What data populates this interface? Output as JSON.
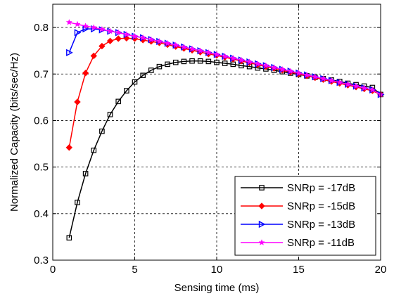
{
  "chart_data": {
    "type": "line",
    "xlabel": "Sensing time (ms)",
    "ylabel": "Normalized Capacity (bits/sec/Hz)",
    "xlim": [
      0,
      20
    ],
    "ylim": [
      0.3,
      0.85
    ],
    "xticks": [
      0,
      5,
      10,
      15,
      20
    ],
    "yticks": [
      0.3,
      0.4,
      0.5,
      0.6,
      0.7,
      0.8
    ],
    "ytick_labels": [
      "0.3",
      "0.4",
      "0.5",
      "0.6",
      "0.7",
      "0.8"
    ],
    "grid": true,
    "legend_position": "bottom-right",
    "x": [
      1,
      1.5,
      2,
      2.5,
      3,
      3.5,
      4,
      4.5,
      5,
      5.5,
      6,
      6.5,
      7,
      7.5,
      8,
      8.5,
      9,
      9.5,
      10,
      10.5,
      11,
      11.5,
      12,
      12.5,
      13,
      13.5,
      14,
      14.5,
      15,
      15.5,
      16,
      16.5,
      17,
      17.5,
      18,
      18.5,
      19,
      19.5,
      20
    ],
    "series": [
      {
        "name": "SNRp = -17dB",
        "color": "#000000",
        "marker": "square",
        "values": [
          0.348,
          0.424,
          0.486,
          0.536,
          0.577,
          0.613,
          0.641,
          0.664,
          0.683,
          0.697,
          0.708,
          0.716,
          0.721,
          0.725,
          0.727,
          0.728,
          0.728,
          0.727,
          0.725,
          0.723,
          0.721,
          0.718,
          0.716,
          0.713,
          0.711,
          0.708,
          0.705,
          0.702,
          0.699,
          0.696,
          0.693,
          0.69,
          0.687,
          0.684,
          0.68,
          0.677,
          0.674,
          0.671,
          0.656
        ]
      },
      {
        "name": "SNRp = -15dB",
        "color": "#ff0000",
        "marker": "diamond",
        "values": [
          0.542,
          0.64,
          0.702,
          0.739,
          0.76,
          0.771,
          0.776,
          0.777,
          0.776,
          0.773,
          0.77,
          0.767,
          0.763,
          0.759,
          0.755,
          0.751,
          0.747,
          0.743,
          0.74,
          0.736,
          0.732,
          0.728,
          0.724,
          0.72,
          0.716,
          0.712,
          0.708,
          0.704,
          0.7,
          0.696,
          0.692,
          0.688,
          0.684,
          0.68,
          0.676,
          0.672,
          0.668,
          0.664,
          0.656
        ]
      },
      {
        "name": "SNRp = -13dB",
        "color": "#0000ff",
        "marker": "triangle-right",
        "values": [
          0.746,
          0.789,
          0.797,
          0.797,
          0.795,
          0.792,
          0.789,
          0.785,
          0.781,
          0.778,
          0.774,
          0.77,
          0.766,
          0.762,
          0.758,
          0.754,
          0.75,
          0.746,
          0.742,
          0.738,
          0.734,
          0.73,
          0.726,
          0.722,
          0.718,
          0.714,
          0.71,
          0.706,
          0.702,
          0.698,
          0.694,
          0.69,
          0.686,
          0.682,
          0.678,
          0.674,
          0.67,
          0.666,
          0.656
        ]
      },
      {
        "name": "SNRp = -11dB",
        "color": "#ff00ff",
        "marker": "star",
        "values": [
          0.811,
          0.807,
          0.803,
          0.8,
          0.796,
          0.792,
          0.789,
          0.785,
          0.781,
          0.778,
          0.774,
          0.77,
          0.766,
          0.762,
          0.758,
          0.754,
          0.75,
          0.746,
          0.742,
          0.738,
          0.734,
          0.73,
          0.726,
          0.722,
          0.718,
          0.714,
          0.71,
          0.706,
          0.702,
          0.698,
          0.694,
          0.69,
          0.686,
          0.682,
          0.678,
          0.674,
          0.67,
          0.666,
          0.656
        ]
      }
    ]
  }
}
